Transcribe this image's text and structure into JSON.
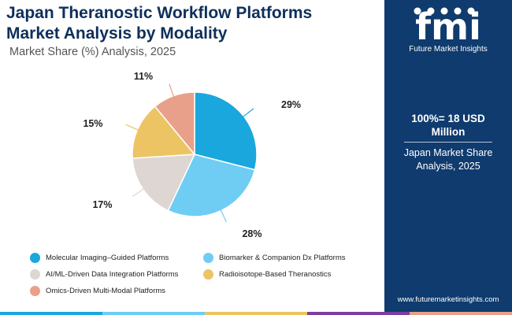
{
  "header": {
    "title_line1": "Japan Theranostic Workflow Platforms",
    "title_line2": "Market Analysis by Modality",
    "subtitle": "Market Share (%) Analysis, 2025"
  },
  "side_panel": {
    "logo_text": "Future Market Insights",
    "logo_letters": "fmi",
    "total": "100%= 18 USD Million",
    "total_line1": "100%= 18 USD",
    "total_line2": "Million",
    "description_line1": "Japan Market Share",
    "description_line2": "Analysis, 2025",
    "url": "www.futuremarketinsights.com",
    "background_color": "#0f3b6e"
  },
  "chart_data": {
    "type": "pie",
    "title": "Japan Theranostic Workflow Platforms Market Analysis by Modality",
    "subtitle": "Market Share (%) Analysis, 2025",
    "legend_position": "bottom",
    "slices": [
      {
        "name": "Molecular Imaging–Guided Platforms",
        "value": 29,
        "label": "29%",
        "color": "#1aa7dd"
      },
      {
        "name": "Biomarker & Companion Dx Platforms",
        "value": 28,
        "label": "28%",
        "color": "#6fcdf3"
      },
      {
        "name": "AI/ML-Driven Data Integration Platforms",
        "value": 17,
        "label": "17%",
        "color": "#ddd6d2"
      },
      {
        "name": "Radioisotope-Based Theranostics",
        "value": 15,
        "label": "15%",
        "color": "#ecc464"
      },
      {
        "name": "Omics-Driven Multi-Modal Platforms",
        "value": 11,
        "label": "11%",
        "color": "#e8a08a"
      }
    ]
  },
  "bottom_bar_colors": [
    "#1aa7dd",
    "#6fcdf3",
    "#ecc464",
    "#7b3fa0",
    "#e8a08a"
  ]
}
